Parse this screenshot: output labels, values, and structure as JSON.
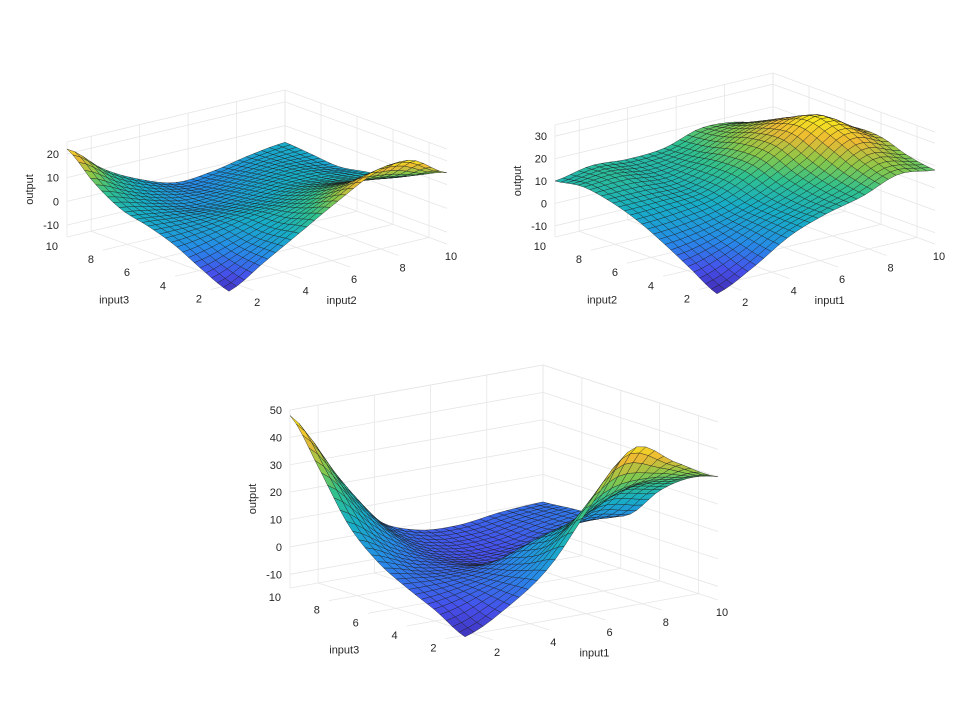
{
  "chart_data": [
    {
      "type": "surface",
      "title": "",
      "xlabel": "input2",
      "ylabel": "input3",
      "zlabel": "output",
      "x_axis_var": "input2",
      "y_axis_var": "input3",
      "xlim": [
        1,
        10
      ],
      "ylim": [
        1,
        10
      ],
      "zlim": [
        -15,
        25
      ],
      "xticks": [
        "2",
        "4",
        "6",
        "8",
        "10"
      ],
      "yticks": [
        "2",
        "4",
        "6",
        "8",
        "10"
      ],
      "zticks": [
        "-10",
        "0",
        "10",
        "20"
      ],
      "grid": true,
      "colormap": "parula",
      "surface": {
        "x": [
          1,
          2.5,
          4,
          5.5,
          7,
          8.5,
          10
        ],
        "y": [
          1,
          2.5,
          4,
          5.5,
          7,
          8.5,
          10
        ],
        "z": [
          [
            -13,
            -4,
            5,
            14,
            22,
            24,
            15
          ],
          [
            -8,
            -3,
            3,
            9,
            14,
            13,
            10
          ],
          [
            -2,
            0,
            3,
            5,
            8,
            7,
            5
          ],
          [
            2,
            1,
            1,
            2,
            4,
            4,
            3
          ],
          [
            5,
            2,
            -1,
            0,
            2,
            3,
            1
          ],
          [
            12,
            5,
            0,
            -2,
            0,
            2,
            2
          ],
          [
            22,
            10,
            2,
            -3,
            -2,
            1,
            3
          ]
        ]
      }
    },
    {
      "type": "surface",
      "title": "",
      "xlabel": "input1",
      "ylabel": "input2",
      "zlabel": "output",
      "x_axis_var": "input1",
      "y_axis_var": "input2",
      "xlim": [
        1,
        10
      ],
      "ylim": [
        1,
        10
      ],
      "zlim": [
        -15,
        35
      ],
      "xticks": [
        "2",
        "4",
        "6",
        "8",
        "10"
      ],
      "yticks": [
        "2",
        "4",
        "6",
        "8",
        "10"
      ],
      "zticks": [
        "-10",
        "0",
        "10",
        "20",
        "30"
      ],
      "grid": true,
      "colormap": "parula",
      "surface": {
        "x": [
          1,
          2.5,
          4,
          5.5,
          7,
          8.5,
          10
        ],
        "y": [
          1,
          2.5,
          4,
          5.5,
          7,
          8.5,
          10
        ],
        "z": [
          [
            -14,
            -6,
            4,
            10,
            14,
            20,
            18
          ],
          [
            -7,
            -2,
            5,
            10,
            16,
            24,
            20
          ],
          [
            0,
            2,
            6,
            12,
            20,
            30,
            24
          ],
          [
            6,
            7,
            9,
            16,
            25,
            33,
            24
          ],
          [
            10,
            10,
            10,
            16,
            24,
            28,
            20
          ],
          [
            12,
            13,
            11,
            14,
            20,
            22,
            15
          ],
          [
            10,
            13,
            12,
            13,
            18,
            17,
            12
          ]
        ]
      }
    },
    {
      "type": "surface",
      "title": "",
      "xlabel": "input1",
      "ylabel": "input3",
      "zlabel": "output",
      "x_axis_var": "input1",
      "y_axis_var": "input3",
      "xlim": [
        1,
        10
      ],
      "ylim": [
        1,
        10
      ],
      "zlim": [
        -15,
        50
      ],
      "xticks": [
        "2",
        "4",
        "6",
        "8",
        "10"
      ],
      "yticks": [
        "2",
        "4",
        "6",
        "8",
        "10"
      ],
      "zticks": [
        "-10",
        "0",
        "10",
        "20",
        "30",
        "40",
        "50"
      ],
      "grid": true,
      "colormap": "parula",
      "surface": {
        "x": [
          1,
          2.5,
          4,
          5.5,
          7,
          8.5,
          10
        ],
        "y": [
          1,
          2.5,
          4,
          5.5,
          7,
          8.5,
          10
        ],
        "z": [
          [
            -12,
            -4,
            8,
            28,
            46,
            38,
            30
          ],
          [
            -6,
            -2,
            4,
            15,
            25,
            28,
            26
          ],
          [
            -1,
            -1,
            1,
            8,
            12,
            20,
            18
          ],
          [
            5,
            0,
            -2,
            -3,
            2,
            8,
            6
          ],
          [
            15,
            5,
            -2,
            -5,
            -4,
            0,
            2
          ],
          [
            32,
            15,
            1,
            -4,
            -4,
            -1,
            1
          ],
          [
            48,
            25,
            5,
            -2,
            -3,
            -1,
            0
          ]
        ]
      }
    }
  ]
}
